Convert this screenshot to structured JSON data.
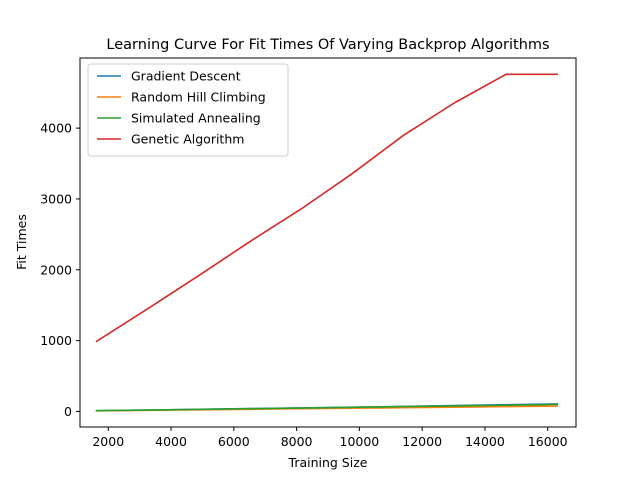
{
  "chart_data": {
    "type": "line",
    "title": "Learning Curve For Fit Times Of Varying Backprop Algorithms",
    "xlabel": "Training Size",
    "ylabel": "Fit Times",
    "xlim": [
      1100,
      16900
    ],
    "ylim": [
      -220,
      4990
    ],
    "xticks": [
      2000,
      4000,
      6000,
      8000,
      10000,
      12000,
      14000,
      16000
    ],
    "yticks": [
      0,
      1000,
      2000,
      3000,
      4000
    ],
    "xtick_labels": [
      "2000",
      "4000",
      "6000",
      "8000",
      "10000",
      "12000",
      "14000",
      "16000"
    ],
    "ytick_labels": [
      "0",
      "1000",
      "2000",
      "3000",
      "4000"
    ],
    "grid": false,
    "legend_position": "upper-left",
    "series": [
      {
        "name": "Gradient Descent",
        "color": "#1f77b4",
        "x": [
          1630,
          3260,
          4890,
          6520,
          8150,
          9780,
          11410,
          13040,
          14670,
          16300
        ],
        "y": [
          10,
          20,
          30,
          40,
          50,
          60,
          70,
          82,
          95,
          105
        ]
      },
      {
        "name": "Random Hill Climbing",
        "color": "#ff7f0e",
        "x": [
          1630,
          3260,
          4890,
          6520,
          8150,
          9780,
          11410,
          13040,
          14670,
          16300
        ],
        "y": [
          8,
          15,
          23,
          30,
          38,
          45,
          53,
          60,
          68,
          75
        ]
      },
      {
        "name": "Simulated Annealing",
        "color": "#2ca02c",
        "x": [
          1630,
          3260,
          4890,
          6520,
          8150,
          9780,
          11410,
          13040,
          14670,
          16300
        ],
        "y": [
          10,
          19,
          28,
          38,
          48,
          58,
          68,
          78,
          88,
          98
        ]
      },
      {
        "name": "Genetic Algorithm",
        "color": "#d62728",
        "x": [
          1630,
          3260,
          4890,
          6520,
          8150,
          9780,
          11410,
          13040,
          14670,
          16300
        ],
        "y": [
          990,
          1450,
          1920,
          2400,
          2860,
          3360,
          3900,
          4360,
          4760,
          4760
        ]
      }
    ]
  }
}
